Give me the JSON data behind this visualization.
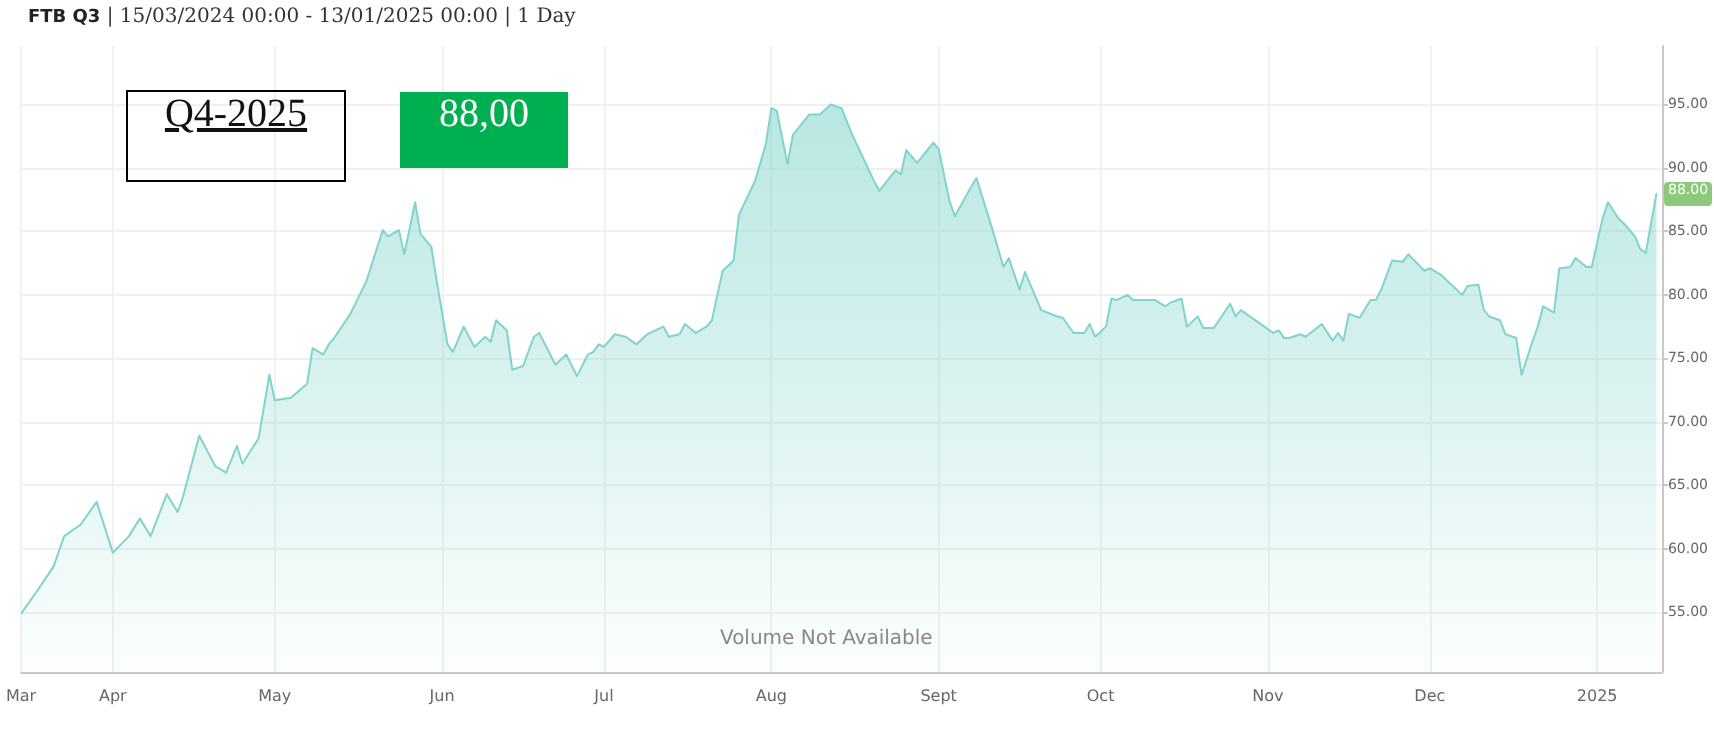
{
  "chart_data": {
    "type": "area",
    "title": "FTB Q3",
    "subtitle": "| 15/03/2024 00:00 - 13/01/2025 00:00 | 1 Day",
    "annotations": [
      "Q4-2025",
      "88,00",
      "Volume Not Available",
      {
        "text": "88.00",
        "x": "2025-01-12",
        "y": 88
      }
    ],
    "xlim": [
      "2024-03-15",
      "2025-01-13"
    ],
    "xticks": [
      {
        "value": "2024-03-15",
        "label": "Mar"
      },
      {
        "value": "2024-04-01",
        "label": "Apr"
      },
      {
        "value": "2024-05-01",
        "label": "May"
      },
      {
        "value": "2024-06-01",
        "label": "Jun"
      },
      {
        "value": "2024-07-01",
        "label": "Jul"
      },
      {
        "value": "2024-08-01",
        "label": "Aug"
      },
      {
        "value": "2024-09-01",
        "label": "Sept"
      },
      {
        "value": "2024-10-01",
        "label": "Oct"
      },
      {
        "value": "2024-11-01",
        "label": "Nov"
      },
      {
        "value": "2024-12-01",
        "label": "Dec"
      },
      {
        "value": "2025-01-01",
        "label": "2025"
      }
    ],
    "ylim": [
      50.3,
      99.6
    ],
    "yticks": [
      {
        "value": 55,
        "label": "55.00"
      },
      {
        "value": 60,
        "label": "60.00"
      },
      {
        "value": 65,
        "label": "65.00"
      },
      {
        "value": 70,
        "label": "70.00"
      },
      {
        "value": 75,
        "label": "75.00"
      },
      {
        "value": 80,
        "label": "80.00"
      },
      {
        "value": 85,
        "label": "85.00"
      },
      {
        "value": 90,
        "label": "90.00"
      },
      {
        "value": 95,
        "label": "95.00"
      }
    ],
    "grid": true,
    "x": [
      "2024-03-15",
      "2024-03-18",
      "2024-03-21",
      "2024-03-23",
      "2024-03-26",
      "2024-03-29",
      "2024-04-01",
      "2024-04-04",
      "2024-04-06",
      "2024-04-08",
      "2024-04-11",
      "2024-04-13",
      "2024-04-14",
      "2024-04-17",
      "2024-04-20",
      "2024-04-22",
      "2024-04-24",
      "2024-04-25",
      "2024-04-28",
      "2024-04-30",
      "2024-05-01",
      "2024-05-04",
      "2024-05-07",
      "2024-05-08",
      "2024-05-10",
      "2024-05-11",
      "2024-05-12",
      "2024-05-15",
      "2024-05-18",
      "2024-05-21",
      "2024-05-22",
      "2024-05-24",
      "2024-05-25",
      "2024-05-27",
      "2024-05-28",
      "2024-05-30",
      "2024-05-31",
      "2024-06-02",
      "2024-06-03",
      "2024-06-05",
      "2024-06-07",
      "2024-06-09",
      "2024-06-10",
      "2024-06-11",
      "2024-06-13",
      "2024-06-14",
      "2024-06-16",
      "2024-06-18",
      "2024-06-19",
      "2024-06-22",
      "2024-06-24",
      "2024-06-26",
      "2024-06-28",
      "2024-06-29",
      "2024-06-30",
      "2024-07-01",
      "2024-07-03",
      "2024-07-05",
      "2024-07-07",
      "2024-07-09",
      "2024-07-12",
      "2024-07-13",
      "2024-07-15",
      "2024-07-16",
      "2024-07-18",
      "2024-07-20",
      "2024-07-21",
      "2024-07-22",
      "2024-07-23",
      "2024-07-25",
      "2024-07-26",
      "2024-07-29",
      "2024-07-31",
      "2024-08-01",
      "2024-08-02",
      "2024-08-04",
      "2024-08-05",
      "2024-08-08",
      "2024-08-10",
      "2024-08-12",
      "2024-08-14",
      "2024-08-16",
      "2024-08-20",
      "2024-08-21",
      "2024-08-24",
      "2024-08-25",
      "2024-08-26",
      "2024-08-28",
      "2024-08-31",
      "2024-09-01",
      "2024-09-03",
      "2024-09-04",
      "2024-09-07",
      "2024-09-08",
      "2024-09-11",
      "2024-09-13",
      "2024-09-14",
      "2024-09-16",
      "2024-09-17",
      "2024-09-20",
      "2024-09-23",
      "2024-09-24",
      "2024-09-26",
      "2024-09-28",
      "2024-09-29",
      "2024-09-30",
      "2024-10-02",
      "2024-10-03",
      "2024-10-04",
      "2024-10-06",
      "2024-10-07",
      "2024-10-11",
      "2024-10-13",
      "2024-10-14",
      "2024-10-16",
      "2024-10-17",
      "2024-10-19",
      "2024-10-20",
      "2024-10-22",
      "2024-10-25",
      "2024-10-26",
      "2024-10-27",
      "2024-11-02",
      "2024-11-03",
      "2024-11-04",
      "2024-11-05",
      "2024-11-07",
      "2024-11-08",
      "2024-11-11",
      "2024-11-13",
      "2024-11-14",
      "2024-11-15",
      "2024-11-16",
      "2024-11-18",
      "2024-11-20",
      "2024-11-21",
      "2024-11-22",
      "2024-11-24",
      "2024-11-26",
      "2024-11-27",
      "2024-11-30",
      "2024-12-01",
      "2024-12-03",
      "2024-12-05",
      "2024-12-07",
      "2024-12-08",
      "2024-12-10",
      "2024-12-11",
      "2024-12-12",
      "2024-12-14",
      "2024-12-15",
      "2024-12-17",
      "2024-12-18",
      "2024-12-20",
      "2024-12-21",
      "2024-12-22",
      "2024-12-24",
      "2024-12-25",
      "2024-12-27",
      "2024-12-28",
      "2024-12-30",
      "2024-12-31",
      "2025-01-02",
      "2025-01-03",
      "2025-01-05",
      "2025-01-06",
      "2025-01-08",
      "2025-01-09",
      "2025-01-10",
      "2025-01-12"
    ],
    "series": [
      {
        "color": "#80d4cc",
        "values": [
          54.9,
          56.7,
          58.6,
          61.0,
          61.9,
          63.7,
          59.7,
          61.0,
          62.4,
          61.0,
          64.3,
          62.9,
          64.1,
          68.9,
          66.5,
          66.0,
          68.1,
          66.7,
          68.7,
          73.7,
          71.7,
          71.9,
          73.0,
          75.8,
          75.3,
          76.1,
          76.6,
          78.5,
          81.1,
          85.1,
          84.6,
          85.1,
          83.2,
          87.3,
          84.8,
          83.8,
          81.1,
          76.1,
          75.5,
          77.5,
          75.9,
          76.7,
          76.3,
          78.0,
          77.2,
          74.1,
          74.4,
          76.7,
          77.0,
          74.5,
          75.3,
          73.6,
          75.3,
          75.5,
          76.1,
          75.9,
          76.9,
          76.7,
          76.1,
          76.9,
          77.5,
          76.7,
          76.9,
          77.7,
          77.0,
          77.5,
          78.0,
          80.0,
          81.9,
          82.7,
          86.3,
          89.0,
          91.9,
          94.7,
          94.5,
          90.3,
          92.6,
          94.2,
          94.2,
          95.0,
          94.7,
          92.6,
          89.0,
          88.2,
          89.8,
          89.5,
          91.4,
          90.4,
          92.0,
          91.5,
          87.4,
          86.2,
          88.5,
          89.2,
          85.1,
          82.2,
          82.9,
          80.4,
          81.8,
          78.8,
          78.3,
          78.2,
          77.0,
          77.0,
          77.7,
          76.7,
          77.5,
          79.7,
          79.6,
          80.0,
          79.6,
          79.6,
          79.1,
          79.4,
          79.7,
          77.5,
          78.3,
          77.4,
          77.4,
          79.3,
          78.3,
          78.8,
          77.0,
          77.2,
          76.6,
          76.6,
          76.9,
          76.7,
          77.7,
          76.4,
          77.0,
          76.4,
          78.5,
          78.2,
          79.6,
          79.6,
          80.4,
          82.7,
          82.6,
          83.2,
          81.9,
          82.1,
          81.6,
          80.8,
          80.0,
          80.7,
          80.8,
          78.8,
          78.3,
          78.0,
          76.9,
          76.6,
          73.7,
          76.3,
          77.5,
          79.1,
          78.6,
          82.1,
          82.2,
          82.9,
          82.2,
          82.2,
          86.0,
          87.3,
          86.0,
          85.6,
          84.6,
          83.6,
          83.3,
          88.0
        ]
      }
    ]
  }
}
